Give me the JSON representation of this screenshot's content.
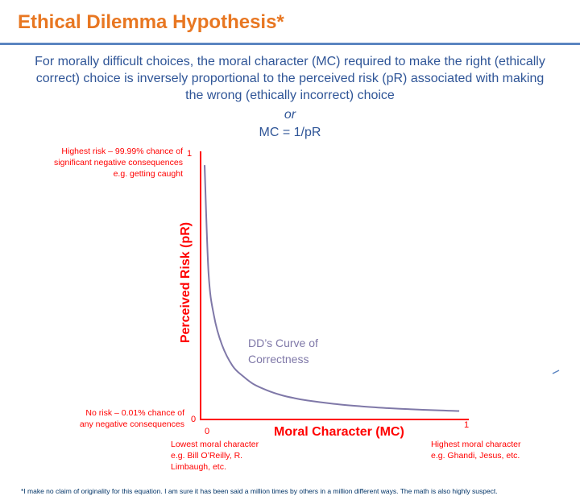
{
  "header": {
    "title": "Ethical Dilemma Hypothesis*",
    "subtitle_lines": [
      "For morally difficult choices, the moral character (MC) required to make the right (ethically",
      "correct) choice is inversely proportional to the perceived risk (pR) associated with making",
      "the wrong (ethically incorrect) choice"
    ],
    "or": "or",
    "formula": "MC = 1/pR"
  },
  "axes": {
    "y_title": "Perceived Risk (pR)",
    "x_title": "Moral Character (MC)",
    "y_tick_top": "1",
    "y_tick_bottom": "0",
    "x_tick_left": "0",
    "x_tick_right": "1"
  },
  "notes": {
    "top_left": [
      "Highest risk –  99.99%  chance of",
      "significant negative consequences",
      "e.g. getting caught"
    ],
    "bottom_left": [
      "No risk –  0.01% chance of",
      "any negative consequences"
    ],
    "x_left": [
      "Lowest moral character",
      "e.g. Bill O’Reilly, R.",
      "Limbaugh, etc."
    ],
    "x_right": [
      "Highest moral character",
      "e.g. Ghandi, Jesus, etc."
    ]
  },
  "curve_label_lines": [
    "DD’s Curve of",
    "Correctness"
  ],
  "footnote": "*I make no claim of originality for this equation. I am sure it has been said a million times by others in a million different ways. The math is also  highly suspect.",
  "colors": {
    "title": "#e87722",
    "rule": "#5b85c1",
    "body_text": "#2f5597",
    "axis": "#ff0000",
    "curve": "#7f78a8"
  },
  "chart_data": {
    "type": "line",
    "title": "DD’s Curve of Correctness",
    "xlabel": "Moral Character (MC)",
    "ylabel": "Perceived Risk (pR)",
    "xlim": [
      0,
      1
    ],
    "ylim": [
      0,
      1
    ],
    "formula": "MC = 1/pR",
    "series": [
      {
        "name": "DD’s Curve of Correctness",
        "x": [
          0.015,
          0.03,
          0.05,
          0.08,
          0.12,
          0.16,
          0.2,
          0.25,
          0.3,
          0.35,
          0.4,
          0.5,
          0.6,
          0.7,
          0.8,
          0.9,
          0.97
        ],
        "y": [
          0.96,
          0.55,
          0.39,
          0.28,
          0.2,
          0.16,
          0.13,
          0.107,
          0.09,
          0.078,
          0.069,
          0.056,
          0.047,
          0.04,
          0.035,
          0.031,
          0.029
        ]
      }
    ]
  }
}
